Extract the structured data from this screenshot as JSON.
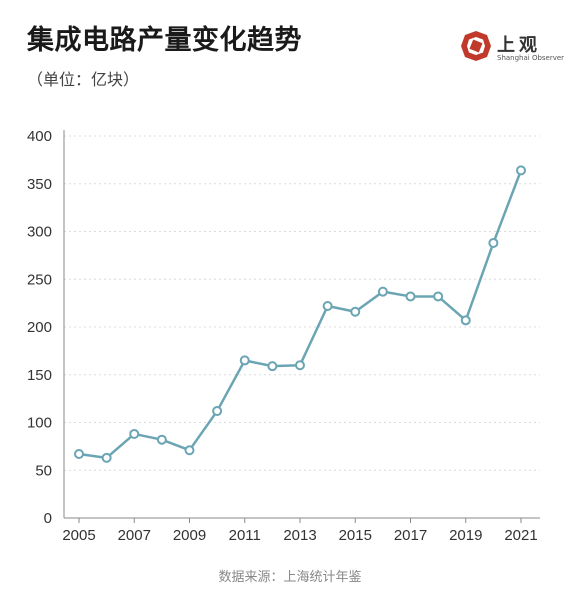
{
  "header": {
    "title": "集成电路产量变化趋势",
    "subtitle": "（单位：亿块）"
  },
  "logo": {
    "name": "上观",
    "english": "Shanghai Observer",
    "color": "#c0392b"
  },
  "footer": {
    "source": "数据来源：上海统计年鉴"
  },
  "chart_data": {
    "type": "line",
    "title": "集成电路产量变化趋势",
    "x": [
      2005,
      2006,
      2007,
      2008,
      2009,
      2010,
      2011,
      2012,
      2013,
      2014,
      2015,
      2016,
      2017,
      2018,
      2019,
      2020,
      2021
    ],
    "series": [
      {
        "name": "",
        "values": [
          67,
          63,
          88,
          82,
          71,
          112,
          165,
          159,
          160,
          222,
          216,
          237,
          232,
          232,
          207,
          288,
          364
        ],
        "color": "#6ba5b4"
      }
    ],
    "xticks": [
      2005,
      2007,
      2009,
      2011,
      2013,
      2015,
      2017,
      2019,
      2021
    ],
    "yticks": [
      0,
      50,
      100,
      150,
      200,
      250,
      300,
      350,
      400
    ],
    "xlim": [
      2005,
      2021
    ],
    "ylim": [
      0,
      400
    ],
    "grid": true
  }
}
